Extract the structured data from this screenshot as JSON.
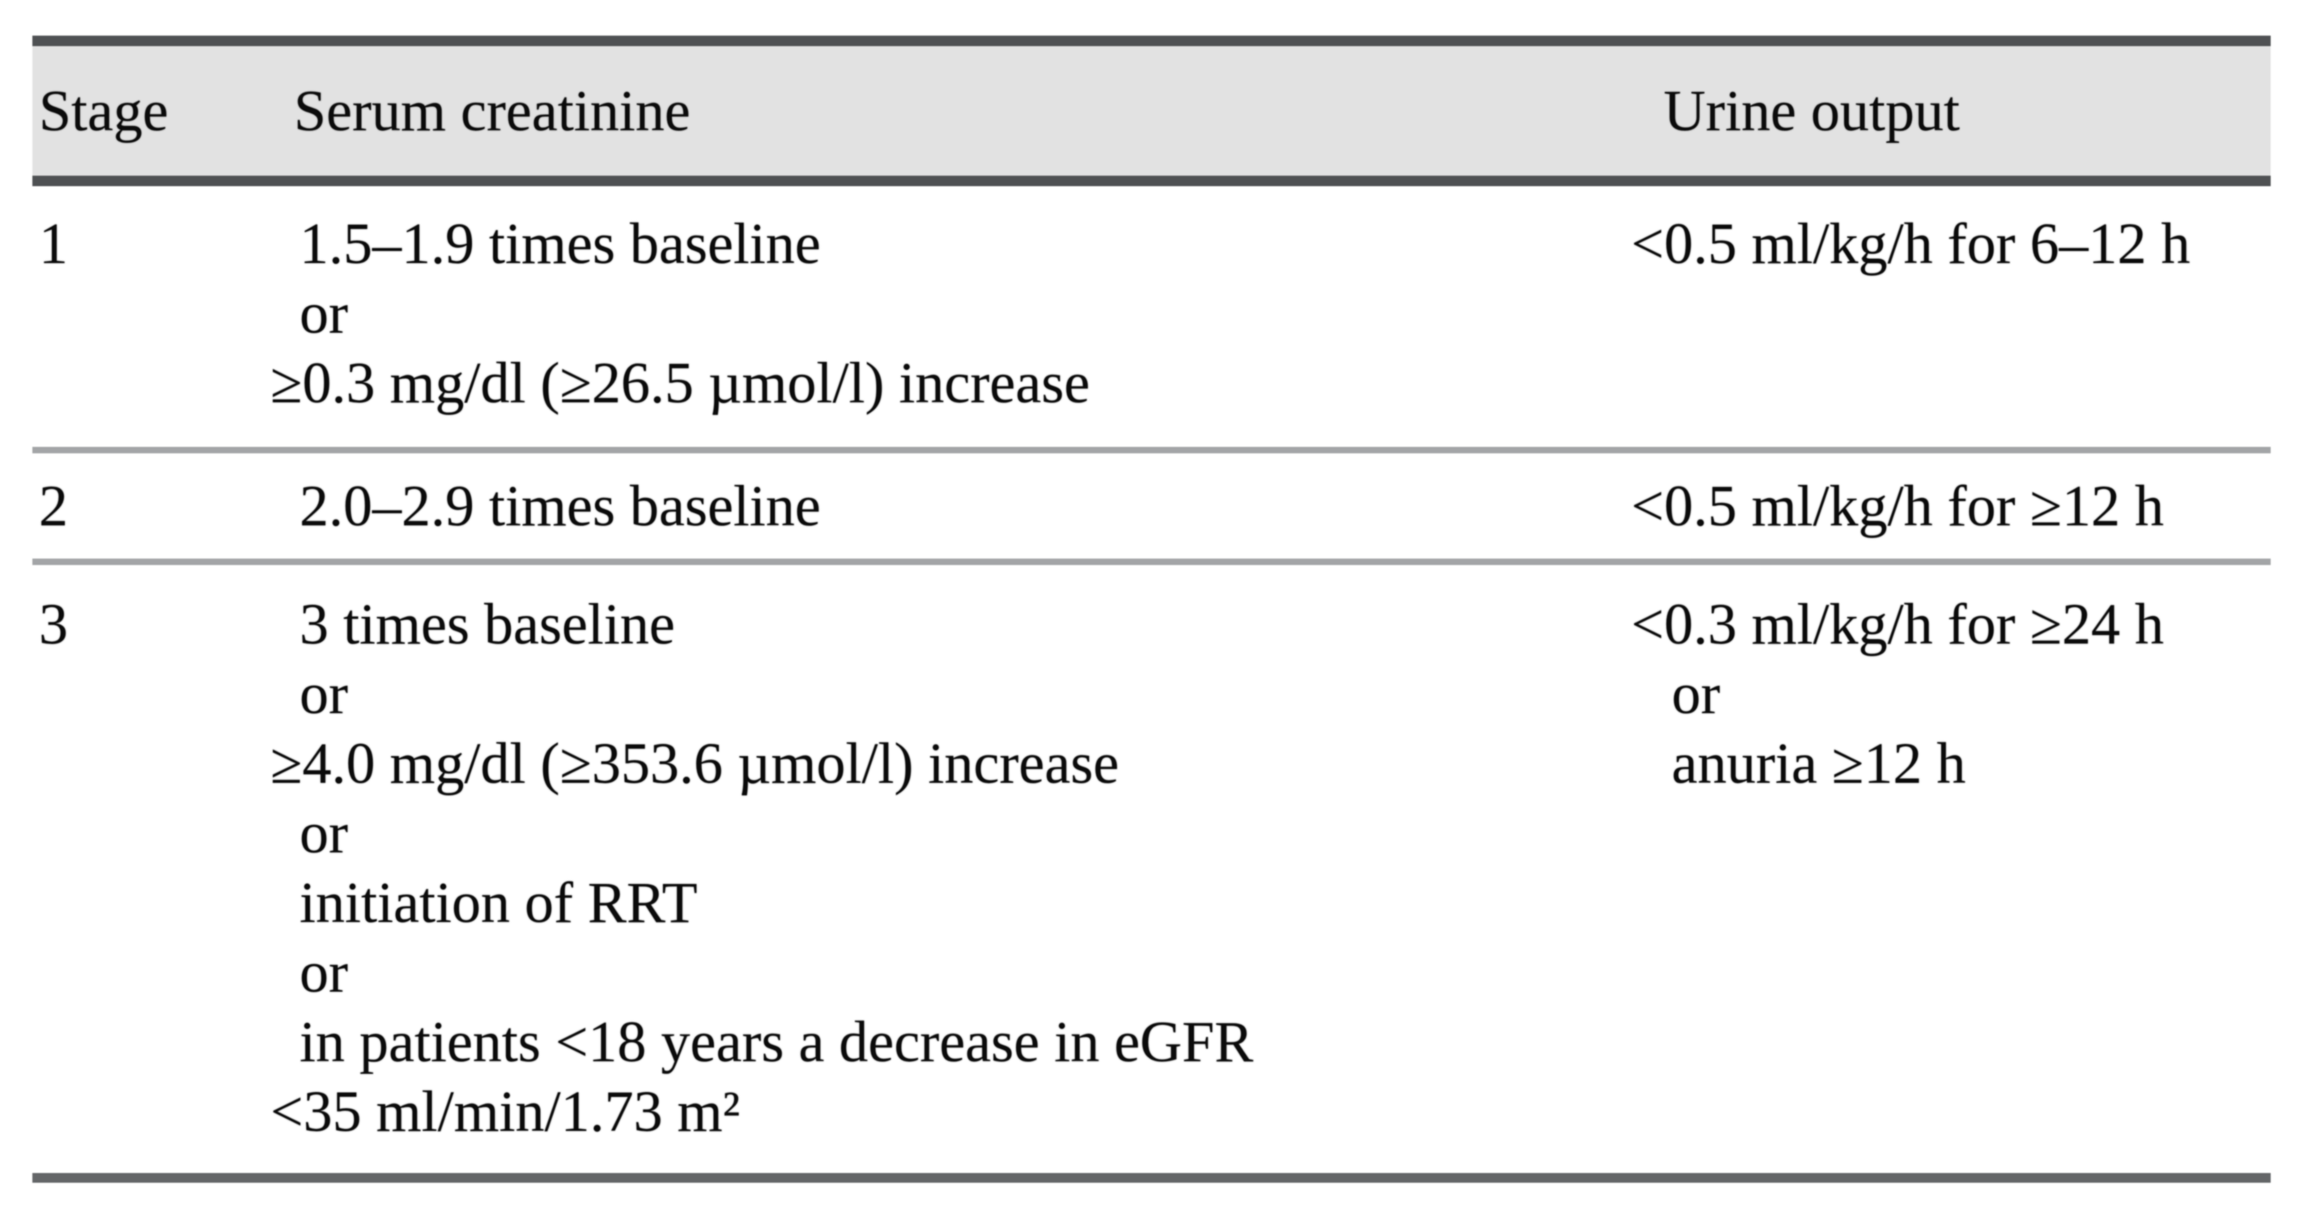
{
  "colors": {
    "header_band": "#e2e2e2",
    "header_rule": "#4f5153",
    "row_separator": "#a3a5a7",
    "bottom_rule": "#646668",
    "text": "#0b0b0b",
    "background": "#ffffff"
  },
  "table": {
    "columns": [
      "Stage",
      "Serum creatinine",
      "Urine output"
    ],
    "rows": [
      {
        "stage": "1",
        "serum_creatinine": [
          "1.5–1.9 times baseline",
          "or",
          "≥0.3 mg/dl (≥26.5 µmol/l) increase"
        ],
        "urine_output": [
          "<0.5 ml/kg/h for 6–12 h"
        ]
      },
      {
        "stage": "2",
        "serum_creatinine": [
          "2.0–2.9 times baseline"
        ],
        "urine_output": [
          "<0.5 ml/kg/h for ≥12 h"
        ]
      },
      {
        "stage": "3",
        "serum_creatinine": [
          "3 times baseline",
          "or",
          "≥4.0 mg/dl (≥353.6 µmol/l) increase",
          "or",
          "initiation of RRT",
          "or",
          "in patients <18 years a decrease in eGFR",
          "<35 ml/min/1.73 m²"
        ],
        "urine_output": [
          "<0.3 ml/kg/h for ≥24 h",
          "or",
          "anuria ≥12 h"
        ]
      }
    ]
  }
}
